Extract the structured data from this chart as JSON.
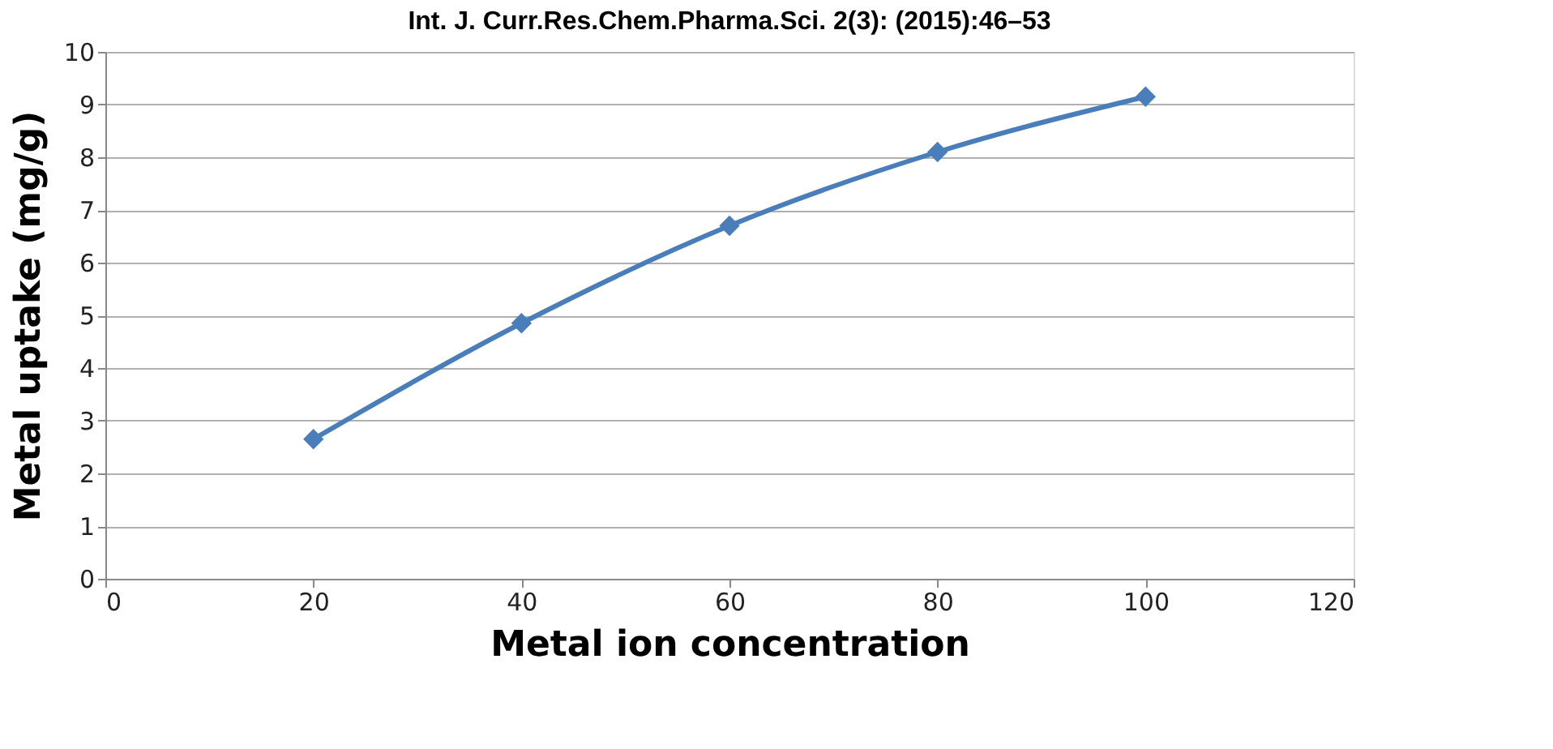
{
  "chart_data": {
    "type": "line",
    "xlabel": "Metal ion concentration",
    "ylabel": "Metal uptake (mg/g)",
    "annotations": [
      "Int. J. Curr.Res.Chem.Pharma.Sci. 2(3): (2015):46–53"
    ],
    "x": [
      20,
      40,
      60,
      80,
      100
    ],
    "series": [
      {
        "color": "#4a7ebb",
        "values": [
          2.65,
          4.85,
          6.7,
          8.1,
          9.15
        ]
      }
    ],
    "xlim": [
      0,
      120
    ],
    "xticks": [
      0,
      20,
      40,
      60,
      80,
      100,
      120
    ],
    "ylim": [
      0,
      10
    ],
    "yticks": [
      0,
      1,
      2,
      3,
      4,
      5,
      6,
      7,
      8,
      9,
      10
    ],
    "grid": "y",
    "marker": "diamond",
    "line_style": "solid"
  }
}
